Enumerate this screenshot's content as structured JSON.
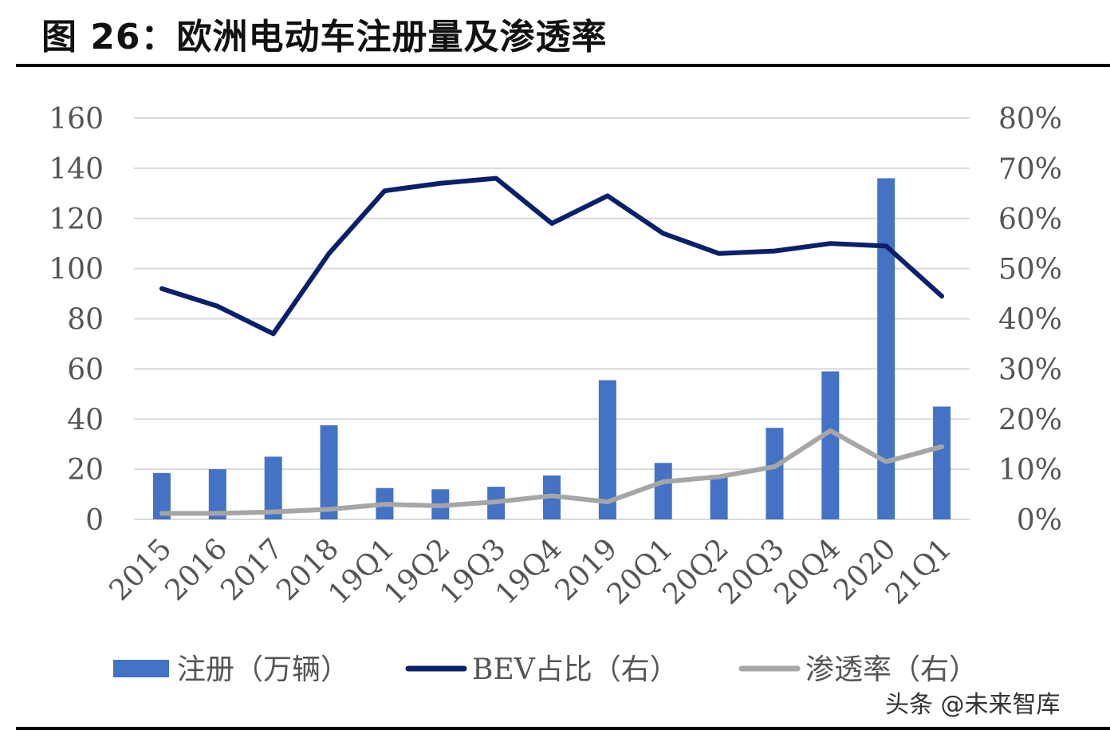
{
  "title": "图 26：欧洲电动车注册量及渗透率",
  "watermark": "头条 @未来智库",
  "colors": {
    "bar": "#4472C4",
    "bev": "#0B1F6B",
    "penetration": "#A6A6A6",
    "grid": "#D9D9D9",
    "text": "#555555"
  },
  "chart_data": {
    "type": "bar",
    "categories": [
      "2015",
      "2016",
      "2017",
      "2018",
      "19Q1",
      "19Q2",
      "19Q3",
      "19Q4",
      "2019",
      "20Q1",
      "20Q2",
      "20Q3",
      "20Q4",
      "2020",
      "21Q1"
    ],
    "left_axis": {
      "ylim": [
        0,
        160
      ],
      "ticks": [
        "0",
        "20",
        "40",
        "60",
        "80",
        "100",
        "120",
        "140",
        "160"
      ]
    },
    "right_axis": {
      "ylim": [
        0,
        80
      ],
      "ticks": [
        "0%",
        "10%",
        "20%",
        "30%",
        "40%",
        "50%",
        "60%",
        "70%",
        "80%"
      ]
    },
    "series": [
      {
        "name": "注册（万辆）",
        "type": "bar",
        "axis": "left",
        "values": [
          18.5,
          20,
          25,
          37.5,
          12.5,
          12,
          13,
          17.5,
          55.5,
          22.5,
          17,
          36.5,
          59,
          136,
          45
        ]
      },
      {
        "name": "BEV占比（右）",
        "type": "line",
        "axis": "right",
        "values": [
          46,
          42.5,
          37,
          53,
          65.5,
          67,
          68,
          59,
          64.5,
          57,
          53,
          53.5,
          55,
          54.5,
          44.5
        ]
      },
      {
        "name": "渗透率（右）",
        "type": "line",
        "axis": "right",
        "values": [
          1.2,
          1.2,
          1.5,
          2,
          3,
          2.7,
          3.5,
          4.7,
          3.5,
          7.5,
          8.5,
          10.5,
          17.7,
          11.5,
          14.5
        ]
      }
    ],
    "legend": "bottom",
    "grid": true
  }
}
